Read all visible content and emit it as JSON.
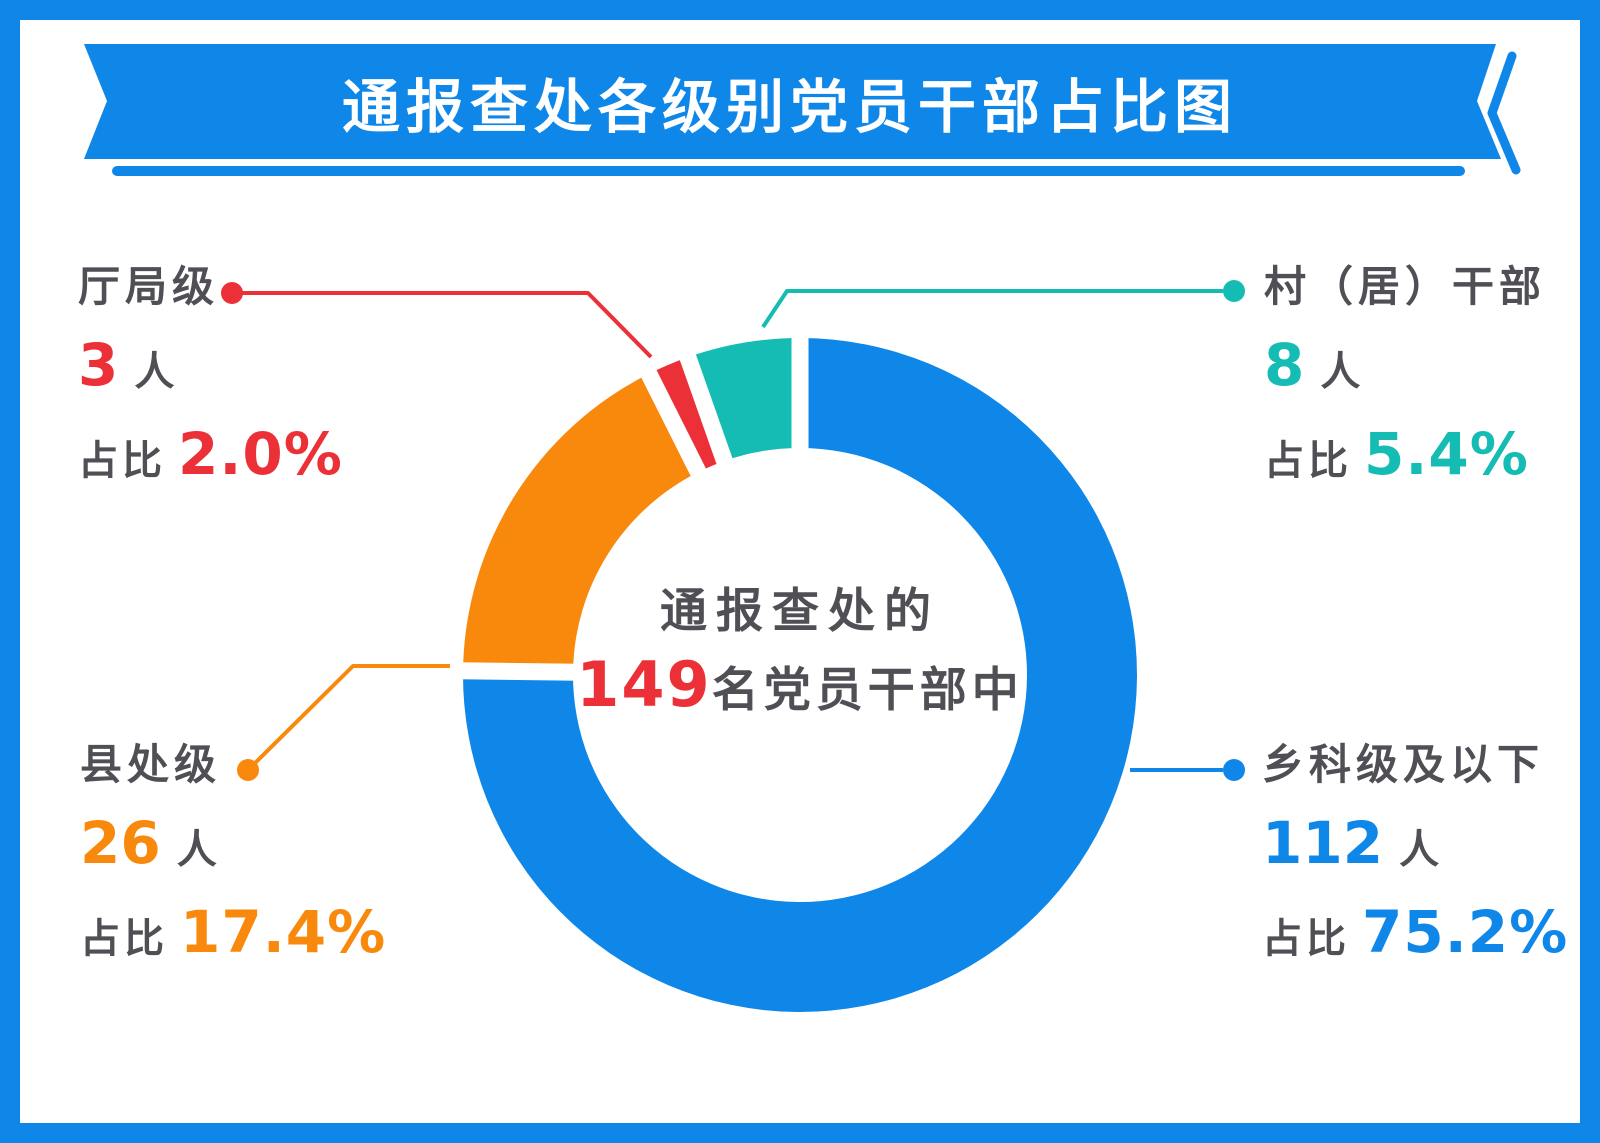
{
  "banner": {
    "title": "通报查处各级别党员干部占比图",
    "bg_color": "#0F87E9",
    "text_color": "#FFFFFF"
  },
  "center_label": {
    "line1": "通报查处的",
    "total": "149",
    "suffix": "名党员干部中"
  },
  "chart_data": {
    "type": "pie",
    "subtype": "donut",
    "title": "通报查处各级别党员干部占比图",
    "total_label": "通报查处的149名党员干部中",
    "total": 149,
    "categories": [
      "乡科级及以下",
      "县处级",
      "厅局级",
      "村（居）干部"
    ],
    "values": [
      112,
      26,
      3,
      8
    ],
    "percentages": [
      75.2,
      17.4,
      2.0,
      5.4
    ],
    "colors": [
      "#0F87E9",
      "#F8890D",
      "#EC3038",
      "#14BCB4"
    ],
    "start_angle_deg": 0,
    "direction": "clockwise",
    "legend_position": "callout-labels",
    "grid": false
  },
  "labels": {
    "tl": {
      "name": "厅局级",
      "count": "3",
      "unit": "人",
      "prefix": "占比",
      "pct": "2.0%",
      "color": "#EC3038"
    },
    "tr": {
      "name": "村（居）干部",
      "count": "8",
      "unit": "人",
      "prefix": "占比",
      "pct": "5.4%",
      "color": "#14BCB4"
    },
    "bl": {
      "name": "县处级",
      "count": "26",
      "unit": "人",
      "prefix": "占比",
      "pct": "17.4%",
      "color": "#F8890D"
    },
    "br": {
      "name": "乡科级及以下",
      "count": "112",
      "unit": "人",
      "prefix": "占比",
      "pct": "75.2%",
      "color": "#0F87E9"
    }
  }
}
